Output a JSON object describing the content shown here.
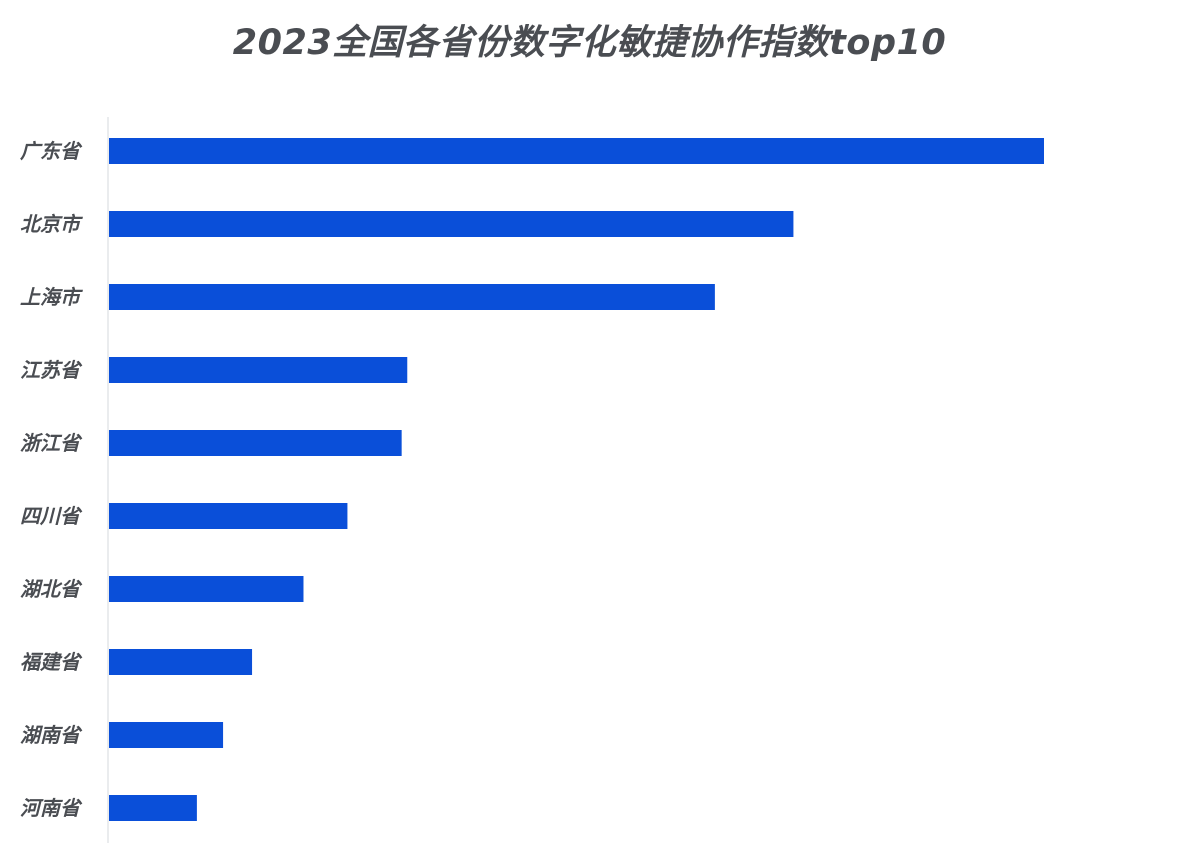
{
  "chart_data": {
    "type": "bar",
    "orientation": "horizontal",
    "title": "2023全国各省份数字化敏捷协作指数top10",
    "xlabel": "",
    "ylabel": "",
    "categories": [
      "广东省",
      "北京市",
      "上海市",
      "江苏省",
      "浙江省",
      "四川省",
      "湖北省",
      "福建省",
      "湖南省",
      "河南省"
    ],
    "values": [
      100,
      73.2,
      64.8,
      31.9,
      31.3,
      25.5,
      20.8,
      15.3,
      12.2,
      9.4
    ],
    "xlim": [
      0,
      100
    ],
    "bar_color": "#0a4fd9",
    "grid": false,
    "legend": "none"
  }
}
